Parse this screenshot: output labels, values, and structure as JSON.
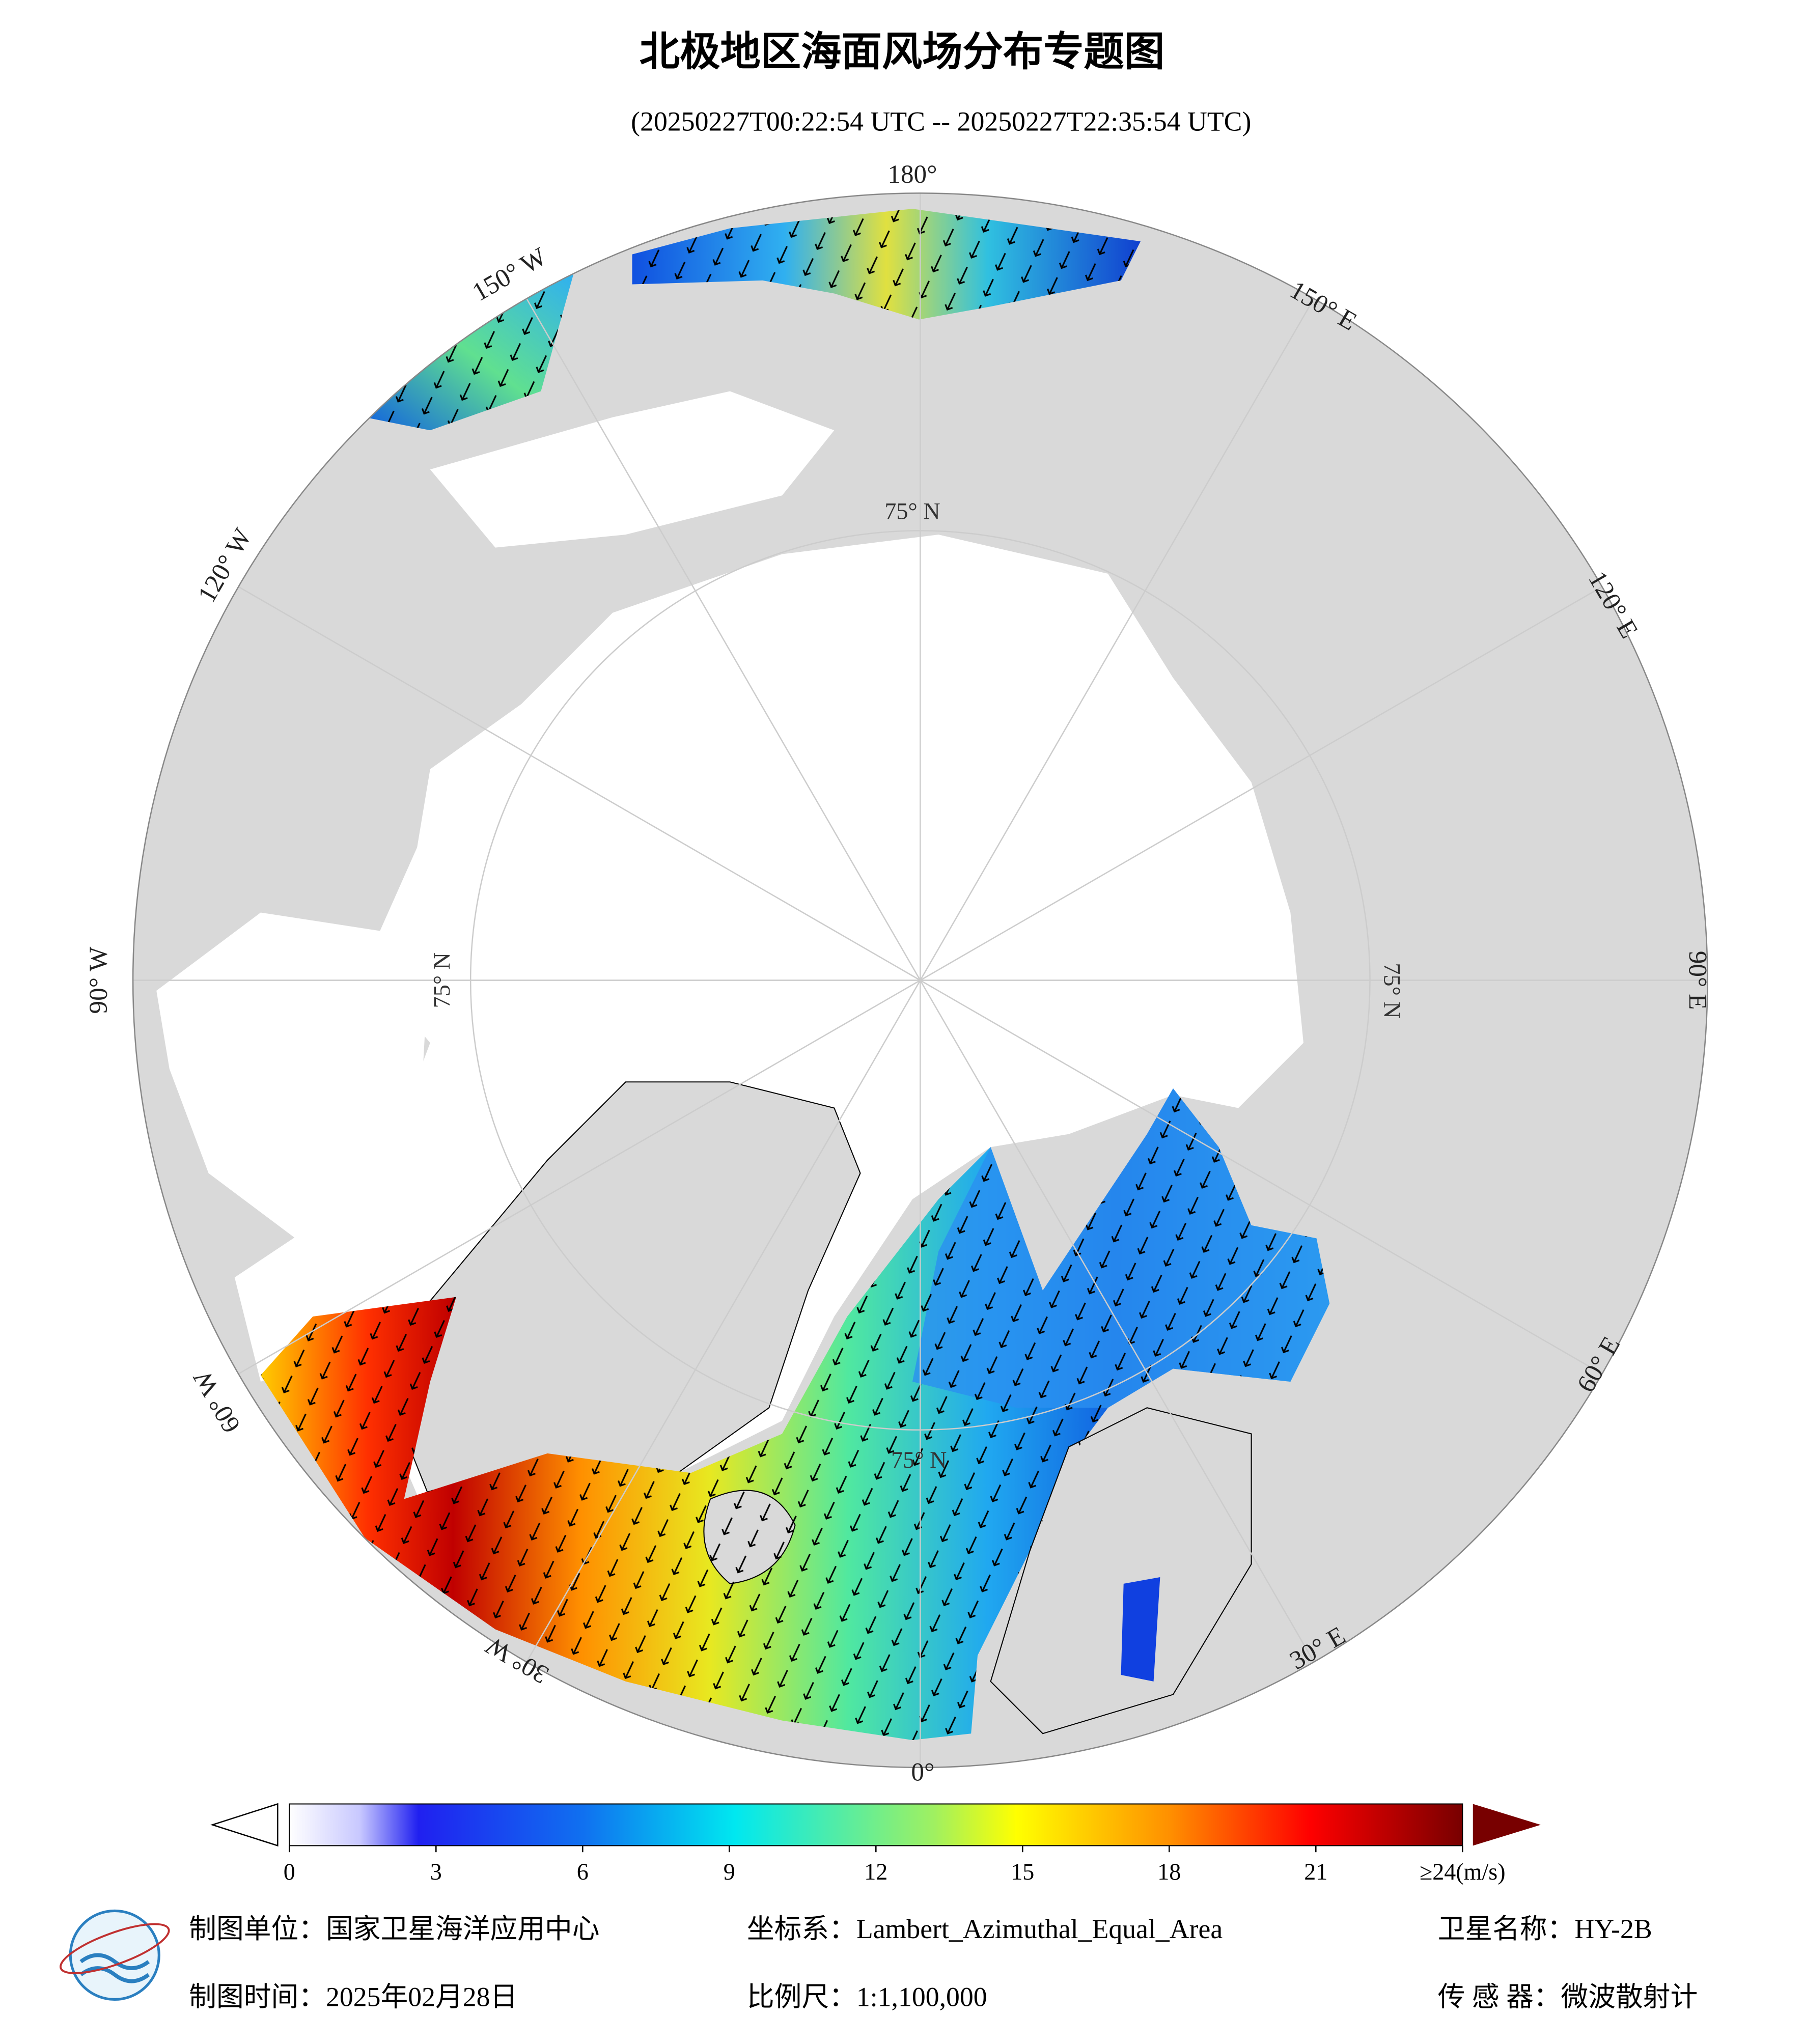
{
  "title": "北极地区海面风场分布专题图",
  "subtitle": "(20250227T00:22:54 UTC -- 20250227T22:35:54 UTC)",
  "meridian_labels": [
    "180°",
    "150° E",
    "120° E",
    "90° E",
    "60° E",
    "30° E",
    "0°",
    "30° W",
    "60° W",
    "90° W",
    "120° W",
    "150° W"
  ],
  "parallel_labels": [
    "75° N",
    "75° N",
    "75° N",
    "75° N"
  ],
  "colorbar": {
    "lim": [
      0,
      24
    ],
    "ticks": [
      0,
      3,
      6,
      9,
      12,
      15,
      18,
      21,
      {
        "value": 24,
        "label": "≥24(m/s)"
      }
    ]
  },
  "footer": {
    "unit": "制图单位：国家卫星海洋应用中心",
    "crs": "坐标系：Lambert_Azimuthal_Equal_Area",
    "satellite": "卫星名称：HY-2B",
    "date": "制图时间：2025年02月28日",
    "scale": "比例尺：1:1,100,000",
    "sensor": "传 感 器：微波散射计"
  }
}
